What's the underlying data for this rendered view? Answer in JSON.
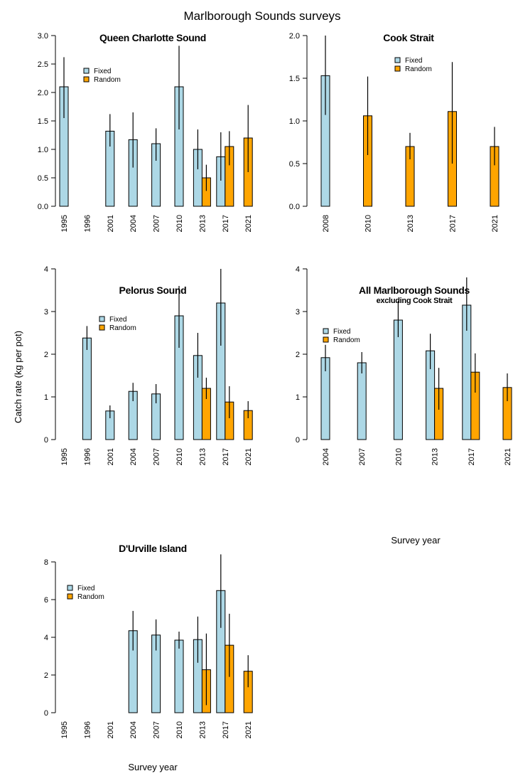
{
  "figure": {
    "title": "Marlborough Sounds surveys",
    "shared_ylabel": "Catch rate (kg per pot)",
    "shared_xlabel": "Survey year",
    "colors": {
      "Fixed": "#add8e6",
      "Random": "#ffa500"
    }
  },
  "chart_data": [
    {
      "type": "bar",
      "title": "Queen Charlotte Sound",
      "subtitle": "",
      "categories": [
        "1995",
        "1996",
        "2001",
        "2004",
        "2007",
        "2010",
        "2013",
        "2017",
        "2021"
      ],
      "ylim": [
        0,
        3.0
      ],
      "yticks": [
        "0.0",
        "0.5",
        "1.0",
        "1.5",
        "2.0",
        "2.5",
        "3.0"
      ],
      "legend": [
        "Fixed",
        "Random"
      ],
      "legend_position": "top-left",
      "series": [
        {
          "name": "Fixed",
          "values": [
            2.1,
            null,
            1.32,
            1.17,
            1.1,
            2.1,
            1.0,
            0.87,
            null
          ],
          "lower": [
            1.55,
            null,
            1.05,
            0.68,
            0.8,
            1.35,
            0.65,
            0.45,
            null
          ],
          "upper": [
            2.62,
            null,
            1.62,
            1.65,
            1.37,
            2.82,
            1.35,
            1.3,
            null
          ]
        },
        {
          "name": "Random",
          "values": [
            null,
            null,
            null,
            null,
            null,
            null,
            0.5,
            1.05,
            1.2
          ],
          "lower": [
            null,
            null,
            null,
            null,
            null,
            null,
            0.27,
            0.72,
            0.6
          ],
          "upper": [
            null,
            null,
            null,
            null,
            null,
            null,
            0.73,
            1.32,
            1.78
          ]
        }
      ]
    },
    {
      "type": "bar",
      "title": "Cook Strait",
      "subtitle": "",
      "categories": [
        "2008",
        "2010",
        "2013",
        "2017",
        "2021"
      ],
      "ylim": [
        0,
        2.0
      ],
      "yticks": [
        "0.0",
        "0.5",
        "1.0",
        "1.5",
        "2.0"
      ],
      "legend": [
        "Fixed",
        "Random"
      ],
      "legend_position": "top-center",
      "series": [
        {
          "name": "Fixed",
          "values": [
            1.53,
            null,
            null,
            null,
            null
          ],
          "lower": [
            1.07,
            null,
            null,
            null,
            null
          ],
          "upper": [
            2.0,
            null,
            null,
            null,
            null
          ]
        },
        {
          "name": "Random",
          "values": [
            null,
            1.06,
            0.7,
            1.11,
            0.7
          ],
          "lower": [
            null,
            0.6,
            0.55,
            0.5,
            0.48
          ],
          "upper": [
            null,
            1.52,
            0.86,
            1.69,
            0.93
          ]
        }
      ]
    },
    {
      "type": "bar",
      "title": "Pelorus Sound",
      "subtitle": "",
      "categories": [
        "1995",
        "1996",
        "2001",
        "2004",
        "2007",
        "2010",
        "2013",
        "2017",
        "2021"
      ],
      "ylim": [
        0,
        4
      ],
      "yticks": [
        "0",
        "1",
        "2",
        "3",
        "4"
      ],
      "legend": [
        "Fixed",
        "Random"
      ],
      "legend_position": "top-left",
      "series": [
        {
          "name": "Fixed",
          "values": [
            null,
            2.38,
            0.67,
            1.13,
            1.07,
            2.9,
            1.97,
            3.2,
            null
          ],
          "lower": [
            null,
            2.1,
            0.5,
            0.9,
            0.85,
            2.15,
            1.45,
            2.2,
            null
          ],
          "upper": [
            null,
            2.66,
            0.8,
            1.33,
            1.3,
            3.6,
            2.5,
            4.0,
            null
          ]
        },
        {
          "name": "Random",
          "values": [
            null,
            null,
            null,
            null,
            null,
            null,
            1.2,
            0.88,
            0.68
          ],
          "lower": [
            null,
            null,
            null,
            null,
            null,
            null,
            0.95,
            0.5,
            0.5
          ],
          "upper": [
            null,
            null,
            null,
            null,
            null,
            null,
            1.45,
            1.25,
            0.9
          ]
        }
      ]
    },
    {
      "type": "bar",
      "title": "All Marlborough Sounds",
      "subtitle": "excluding Cook Strait",
      "categories": [
        "2004",
        "2007",
        "2010",
        "2013",
        "2017",
        "2021"
      ],
      "ylim": [
        0,
        4
      ],
      "yticks": [
        "0",
        "1",
        "2",
        "3",
        "4"
      ],
      "legend": [
        "Fixed",
        "Random"
      ],
      "legend_position": "top-left",
      "series": [
        {
          "name": "Fixed",
          "values": [
            1.92,
            1.8,
            2.8,
            2.08,
            3.15,
            null
          ],
          "lower": [
            1.6,
            1.55,
            2.4,
            1.65,
            2.55,
            null
          ],
          "upper": [
            2.22,
            2.05,
            3.25,
            2.48,
            3.8,
            null
          ]
        },
        {
          "name": "Random",
          "values": [
            null,
            null,
            null,
            1.2,
            1.58,
            1.22
          ],
          "lower": [
            null,
            null,
            null,
            0.7,
            1.1,
            0.9
          ],
          "upper": [
            null,
            null,
            null,
            1.68,
            2.02,
            1.55
          ]
        }
      ]
    },
    {
      "type": "bar",
      "title": "D'Urville Island",
      "subtitle": "",
      "categories": [
        "1995",
        "1996",
        "2001",
        "2004",
        "2007",
        "2010",
        "2013",
        "2017",
        "2021"
      ],
      "ylim": [
        0,
        8
      ],
      "yticks": [
        "0",
        "2",
        "4",
        "6",
        "8"
      ],
      "legend": [
        "Fixed",
        "Random"
      ],
      "legend_position": "top-left",
      "series": [
        {
          "name": "Fixed",
          "values": [
            null,
            null,
            null,
            4.35,
            4.12,
            3.85,
            3.88,
            6.48,
            null
          ],
          "lower": [
            null,
            null,
            null,
            3.3,
            3.3,
            3.4,
            2.65,
            4.5,
            null
          ],
          "upper": [
            null,
            null,
            null,
            5.4,
            4.95,
            4.3,
            5.1,
            8.4,
            null
          ]
        },
        {
          "name": "Random",
          "values": [
            null,
            null,
            null,
            null,
            null,
            null,
            2.28,
            3.58,
            2.2
          ],
          "lower": [
            null,
            null,
            null,
            null,
            null,
            null,
            0.4,
            1.9,
            1.35
          ],
          "upper": [
            null,
            null,
            null,
            null,
            null,
            null,
            4.2,
            5.25,
            3.05
          ]
        }
      ]
    }
  ]
}
